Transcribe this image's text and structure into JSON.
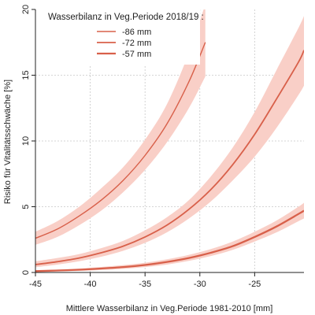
{
  "colors": {
    "line": "#d8604a",
    "band": "#f9cfc7",
    "legend_bg": "#ffffff"
  },
  "chart_data": {
    "type": "line",
    "xlabel": "Mittlere Wasserbilanz in Veg.Periode 1981-2010 [mm]",
    "ylabel": "Risiko für Vitalitätsschwäche [%]",
    "xlim": [
      -45,
      -20.5
    ],
    "ylim": [
      0,
      20
    ],
    "x_ticks": [
      -45,
      -40,
      -35,
      -30,
      -25
    ],
    "y_ticks": [
      0,
      5,
      10,
      15,
      20
    ],
    "grid": true,
    "legend": {
      "title": "Wasserbilanz in Veg.Periode 2018/19 :",
      "position": "top-left"
    },
    "series": [
      {
        "name": "-86 mm",
        "line_width": 1.4,
        "x": [
          -45,
          -43,
          -41,
          -39,
          -37,
          -35,
          -33,
          -31,
          -29.5
        ],
        "y": [
          2.6,
          3.3,
          4.3,
          5.5,
          7.0,
          8.9,
          11.3,
          14.5,
          17.5
        ],
        "lower": [
          2.1,
          2.7,
          3.6,
          4.7,
          6.1,
          7.8,
          9.9,
          12.5,
          14.9
        ],
        "upper": [
          3.1,
          3.9,
          5.0,
          6.4,
          8.0,
          10.1,
          12.8,
          16.7,
          20.4
        ]
      },
      {
        "name": "-72 mm",
        "line_width": 1.8,
        "x": [
          -45,
          -43,
          -41,
          -39,
          -37,
          -35,
          -33,
          -31,
          -29,
          -27,
          -25,
          -23,
          -21,
          -20.5
        ],
        "y": [
          0.6,
          0.82,
          1.1,
          1.5,
          2.0,
          2.7,
          3.6,
          4.8,
          6.3,
          8.2,
          10.5,
          13.2,
          16.0,
          16.9
        ],
        "lower": [
          0.4,
          0.6,
          0.85,
          1.2,
          1.65,
          2.25,
          3.05,
          4.1,
          5.4,
          7.0,
          8.8,
          11.0,
          13.5,
          14.2
        ],
        "upper": [
          0.85,
          1.1,
          1.4,
          1.85,
          2.4,
          3.2,
          4.2,
          5.5,
          7.3,
          9.5,
          12.2,
          15.4,
          18.6,
          19.5
        ]
      },
      {
        "name": "-57 mm",
        "line_width": 2.3,
        "x": [
          -45,
          -43,
          -41,
          -39,
          -37,
          -35,
          -33,
          -31,
          -29,
          -27,
          -25,
          -23,
          -21,
          -20.5
        ],
        "y": [
          0.1,
          0.15,
          0.21,
          0.3,
          0.41,
          0.57,
          0.8,
          1.1,
          1.5,
          2.0,
          2.7,
          3.5,
          4.45,
          4.7
        ],
        "lower": [
          0.05,
          0.08,
          0.12,
          0.19,
          0.28,
          0.41,
          0.6,
          0.88,
          1.25,
          1.72,
          2.35,
          3.05,
          3.9,
          4.1
        ],
        "upper": [
          0.16,
          0.22,
          0.3,
          0.42,
          0.56,
          0.74,
          1.0,
          1.34,
          1.78,
          2.35,
          3.1,
          3.95,
          5.0,
          5.3
        ]
      }
    ]
  }
}
